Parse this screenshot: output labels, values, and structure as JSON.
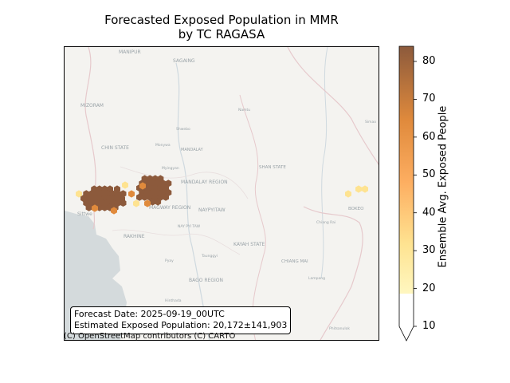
{
  "title_line1": "Forecasted Exposed Population in MMR",
  "title_line2": "by TC RAGASA",
  "info": {
    "forecast_date": "Forecast Date: 2025-09-19_00UTC",
    "estimate": "Estimated Exposed Population: 20,172±141,903"
  },
  "attribution": "(C) OpenStreetMap contributors (C) CARTO",
  "map_labels": {
    "manipur": "MANIPUR",
    "sagaing": "SAGAING",
    "mizoram": "MIZORAM",
    "chin_state": "CHIN STATE",
    "mandalay": "MANDALAY",
    "shan_state": "SHAN STATE",
    "mandalay_region": "MANDALAY REGION",
    "magway_region": "MAGWAY REGION",
    "naypyitaw": "NAYPYITAW",
    "sittwe": "Sittwe",
    "rakhine": "RAKHINE",
    "kayah_state": "KAYAH STATE",
    "bokeo": "BOKEO",
    "bago_region": "BAGO REGION",
    "chiang_mai": "CHIANG MAI",
    "nay_pyi_taw": "NAY PYI TAW",
    "namtu": "Namtu",
    "shwebo": "Shwebo",
    "monywa": "Monywa",
    "myingyan": "Myingyan",
    "simao": "Simao",
    "taunggyi": "Taunggyi",
    "pyay": "Pyay",
    "lampang": "Lampang",
    "chiang_rai": "Chiang Rai",
    "hinthada": "Hinthada",
    "phitsanulok": "Phitsanulok"
  },
  "colorbar": {
    "label": "Ensemble Avg. Exposed People",
    "ticks": [
      "10",
      "20",
      "30",
      "40",
      "50",
      "60",
      "70",
      "80"
    ],
    "min": 10,
    "max": 84,
    "extend": "min"
  },
  "colors": {
    "land": "#f4f3f0",
    "sea": "#d4dadc",
    "high": "#8c5a3c",
    "mid": "#e08a3c",
    "low": "#fee391"
  }
}
